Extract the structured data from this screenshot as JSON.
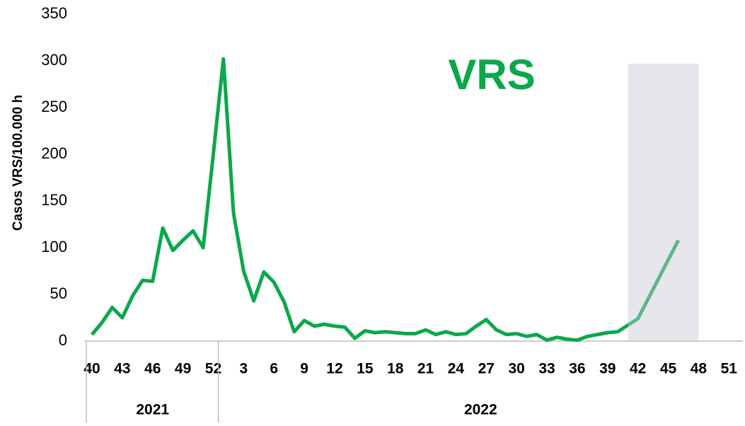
{
  "chart_data": {
    "type": "line",
    "annotation": "VRS",
    "y_label": "Casos VRS/100.000 h",
    "categories": [
      "40",
      null,
      null,
      "43",
      null,
      null,
      "46",
      null,
      null,
      "49",
      null,
      null,
      "52",
      null,
      null,
      "3",
      null,
      null,
      "6",
      null,
      null,
      "9",
      null,
      null,
      "12",
      null,
      null,
      "15",
      null,
      null,
      "18",
      null,
      null,
      "21",
      null,
      null,
      "24",
      null,
      null,
      "27",
      null,
      null,
      "30",
      null,
      null,
      "33",
      null,
      null,
      "36",
      null,
      null,
      "39",
      null,
      null,
      "42",
      null,
      null,
      "45",
      null,
      null,
      "48",
      null,
      null,
      "51",
      null
    ],
    "groups": [
      {
        "label": "2021",
        "span": 13
      },
      {
        "label": "2022",
        "span": 52
      }
    ],
    "series": [
      {
        "name": "VRS",
        "color": "#0aa84a",
        "values": [
          7,
          20,
          36,
          25,
          48,
          65,
          64,
          121,
          97,
          108,
          118,
          100,
          200,
          302,
          137,
          75,
          43,
          74,
          63,
          42,
          10,
          22,
          16,
          18,
          16,
          15,
          3,
          11,
          9,
          10,
          9,
          8,
          8,
          12,
          7,
          10,
          7,
          8,
          16,
          23,
          12,
          7,
          8,
          5,
          7,
          1,
          4,
          2,
          1,
          5,
          7,
          9,
          10,
          17,
          24,
          45,
          66,
          87,
          108,
          null,
          null,
          null,
          null,
          null,
          null
        ]
      }
    ],
    "shaded": {
      "from": 53,
      "to": 60
    },
    "ylim": [
      0,
      350
    ],
    "yticks": [
      0,
      50,
      100,
      150,
      200,
      250,
      300,
      350
    ],
    "grid": false
  }
}
